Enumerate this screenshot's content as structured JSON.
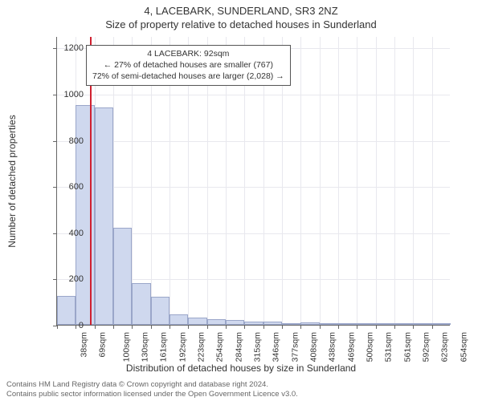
{
  "titles": {
    "line1": "4, LACEBARK, SUNDERLAND, SR3 2NZ",
    "line2": "Size of property relative to detached houses in Sunderland"
  },
  "axes": {
    "ylabel": "Number of detached properties",
    "xlabel": "Distribution of detached houses by size in Sunderland",
    "ylim": [
      0,
      1250
    ],
    "yticks": [
      0,
      200,
      400,
      600,
      800,
      1000,
      1200
    ],
    "xticks": [
      "38sqm",
      "69sqm",
      "100sqm",
      "130sqm",
      "161sqm",
      "192sqm",
      "223sqm",
      "254sqm",
      "284sqm",
      "315sqm",
      "346sqm",
      "377sqm",
      "408sqm",
      "438sqm",
      "469sqm",
      "500sqm",
      "531sqm",
      "561sqm",
      "592sqm",
      "623sqm",
      "654sqm"
    ]
  },
  "chart": {
    "type": "histogram",
    "bar_fill": "#cfd8ee",
    "bar_stroke": "#9aa6c9",
    "grid_color": "#e8e8ee",
    "background_color": "#ffffff",
    "axis_color": "#666666",
    "refline_color": "#d02030",
    "refline_value": 92,
    "x_start": 38,
    "x_step": 30.55,
    "bins": 21,
    "values": [
      125,
      950,
      940,
      420,
      180,
      120,
      45,
      30,
      25,
      20,
      15,
      15,
      2,
      10,
      2,
      2,
      2,
      2,
      2,
      2,
      2
    ]
  },
  "annotation": {
    "line1": "4 LACEBARK: 92sqm",
    "line2": "← 27% of detached houses are smaller (767)",
    "line3": "72% of semi-detached houses are larger (2,028) →",
    "border_color": "#555555"
  },
  "attribution": {
    "line1": "Contains HM Land Registry data © Crown copyright and database right 2024.",
    "line2": "Contains public sector information licensed under the Open Government Licence v3.0."
  }
}
